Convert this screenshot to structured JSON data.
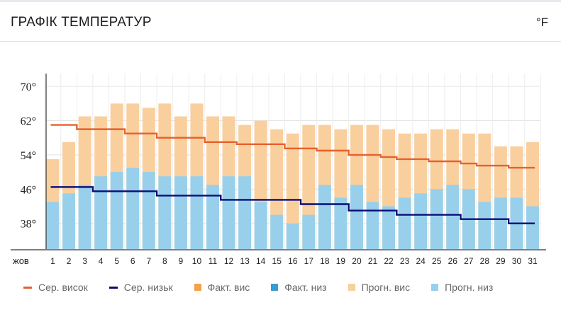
{
  "header": {
    "title": "ГРАФІК ТЕМПЕРАТУР",
    "unit": "°F"
  },
  "colors": {
    "avg_high": "#e8602c",
    "avg_low": "#0b0b7a",
    "actual_high": "#f5a04b",
    "actual_low": "#3a9bd1",
    "forecast_high": "#f9cf9e",
    "forecast_low": "#98d0eb"
  },
  "legend": [
    {
      "key": "avg_high",
      "label": "Сер. висок",
      "kind": "line"
    },
    {
      "key": "avg_low",
      "label": "Сер. низьк",
      "kind": "line"
    },
    {
      "key": "actual_high",
      "label": "Факт. вис",
      "kind": "box"
    },
    {
      "key": "actual_low",
      "label": "Факт. низ",
      "kind": "box"
    },
    {
      "key": "forecast_high",
      "label": "Прогн. вис",
      "kind": "box"
    },
    {
      "key": "forecast_low",
      "label": "Прогн. низ",
      "kind": "box"
    }
  ],
  "chart_data": {
    "type": "bar",
    "title": "ГРАФІК ТЕМПЕРАТУР",
    "month_label": "жов",
    "unit": "°F",
    "ylim": [
      32,
      73
    ],
    "yticks": [
      38,
      46,
      54,
      62,
      70
    ],
    "ytick_labels": [
      "38°",
      "46°",
      "54°",
      "62°",
      "70°"
    ],
    "grid": true,
    "categories": [
      "1",
      "2",
      "3",
      "4",
      "5",
      "6",
      "7",
      "8",
      "9",
      "10",
      "11",
      "12",
      "13",
      "14",
      "15",
      "16",
      "17",
      "18",
      "19",
      "20",
      "21",
      "22",
      "23",
      "24",
      "25",
      "26",
      "27",
      "28",
      "29",
      "30",
      "31"
    ],
    "series": [
      {
        "name": "Прогн. вис",
        "type": "bar",
        "values": [
          53,
          57,
          63,
          63,
          66,
          66,
          65,
          66,
          63,
          66,
          63,
          63,
          61,
          62,
          60,
          59,
          61,
          61,
          60,
          61,
          61,
          60,
          59,
          59,
          60,
          60,
          59,
          59,
          56,
          56,
          57
        ]
      },
      {
        "name": "Прогн. низ",
        "type": "bar",
        "values": [
          43,
          45,
          47,
          49,
          50,
          51,
          50,
          49,
          49,
          49,
          47,
          49,
          49,
          43,
          40,
          38,
          40,
          47,
          44,
          47,
          43,
          42,
          44,
          45,
          46,
          47,
          46,
          43,
          44,
          44,
          42
        ]
      },
      {
        "name": "Сер. висок",
        "type": "line",
        "values": [
          61,
          61,
          60,
          60,
          60,
          59,
          59,
          58,
          58,
          58,
          57,
          57,
          56.5,
          56.5,
          56.5,
          55.5,
          55.5,
          55,
          55,
          54,
          54,
          53.5,
          53,
          53,
          52.5,
          52.5,
          52,
          51.5,
          51.5,
          51,
          51
        ]
      },
      {
        "name": "Сер. низьк",
        "type": "line",
        "values": [
          46.5,
          46.5,
          46.5,
          45.5,
          45.5,
          45.5,
          45.5,
          44.5,
          44.5,
          44.5,
          44.5,
          43.5,
          43.5,
          43.5,
          43.5,
          43.5,
          42.5,
          42.5,
          42.5,
          41,
          41,
          41,
          40,
          40,
          40,
          40,
          39,
          39,
          39,
          38,
          38
        ]
      }
    ]
  }
}
